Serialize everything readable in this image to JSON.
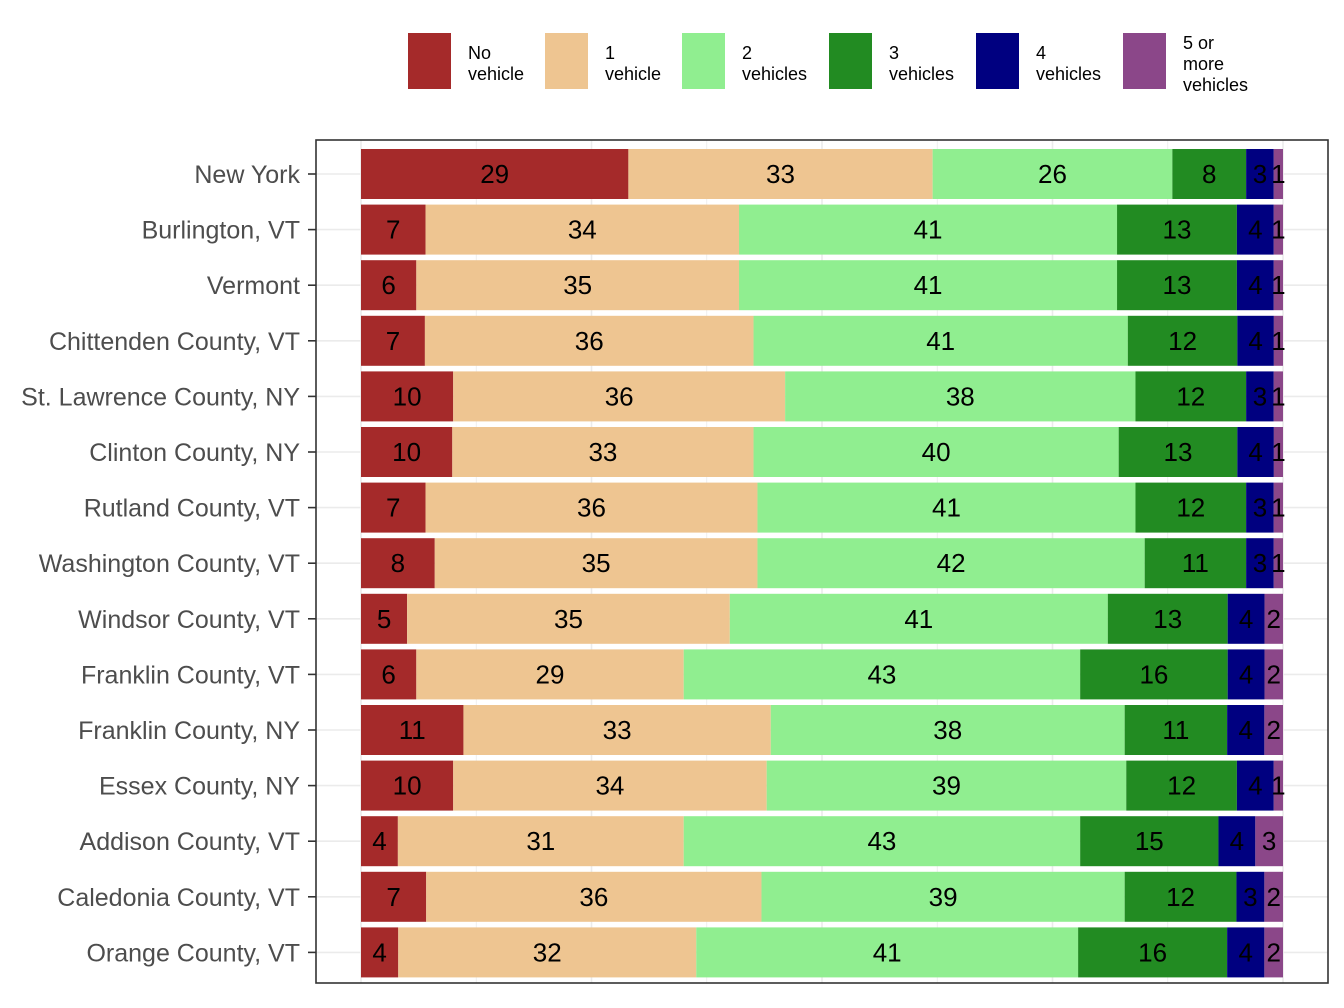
{
  "chart_data": {
    "type": "bar",
    "orientation": "horizontal",
    "stacked": true,
    "normalized_percent": true,
    "title": "",
    "xlabel": "",
    "ylabel": "",
    "xlim": [
      0,
      100
    ],
    "grid": true,
    "legend_position": "top",
    "categories": [
      "New York",
      "Burlington, VT",
      "Vermont",
      "Chittenden County, VT",
      "St. Lawrence County, NY",
      "Clinton County, NY",
      "Rutland County, VT",
      "Washington County, VT",
      "Windsor County, VT",
      "Franklin County, VT",
      "Franklin County, NY",
      "Essex County, NY",
      "Addison County, VT",
      "Caledonia County, VT",
      "Orange County, VT"
    ],
    "series": [
      {
        "name": "No vehicle",
        "legend_lines": [
          "No",
          "vehicle"
        ],
        "color": "#a52a2a",
        "values": [
          29,
          7,
          6,
          7,
          10,
          10,
          7,
          8,
          5,
          6,
          11,
          10,
          4,
          7,
          4
        ]
      },
      {
        "name": "1 vehicle",
        "legend_lines": [
          "1",
          "vehicle"
        ],
        "color": "#eec591",
        "values": [
          33,
          34,
          35,
          36,
          36,
          33,
          36,
          35,
          35,
          29,
          33,
          34,
          31,
          36,
          32
        ]
      },
      {
        "name": "2 vehicles",
        "legend_lines": [
          "2",
          "vehicles"
        ],
        "color": "#90ee90",
        "values": [
          26,
          41,
          41,
          41,
          38,
          40,
          41,
          42,
          41,
          43,
          38,
          39,
          43,
          39,
          41
        ]
      },
      {
        "name": "3 vehicles",
        "legend_lines": [
          "3",
          "vehicles"
        ],
        "color": "#228b22",
        "values": [
          8,
          13,
          13,
          12,
          12,
          13,
          12,
          11,
          13,
          16,
          11,
          12,
          15,
          12,
          16
        ]
      },
      {
        "name": "4 vehicles",
        "legend_lines": [
          "4",
          "vehicles"
        ],
        "color": "#000080",
        "values": [
          3,
          4,
          4,
          4,
          3,
          4,
          3,
          3,
          4,
          4,
          4,
          4,
          4,
          3,
          4
        ]
      },
      {
        "name": "5 or more vehicles",
        "legend_lines": [
          "5 or",
          "more",
          "vehicles"
        ],
        "color": "#8b4789",
        "values": [
          1,
          1,
          1,
          1,
          1,
          1,
          1,
          1,
          2,
          2,
          2,
          1,
          3,
          2,
          2
        ]
      }
    ]
  }
}
